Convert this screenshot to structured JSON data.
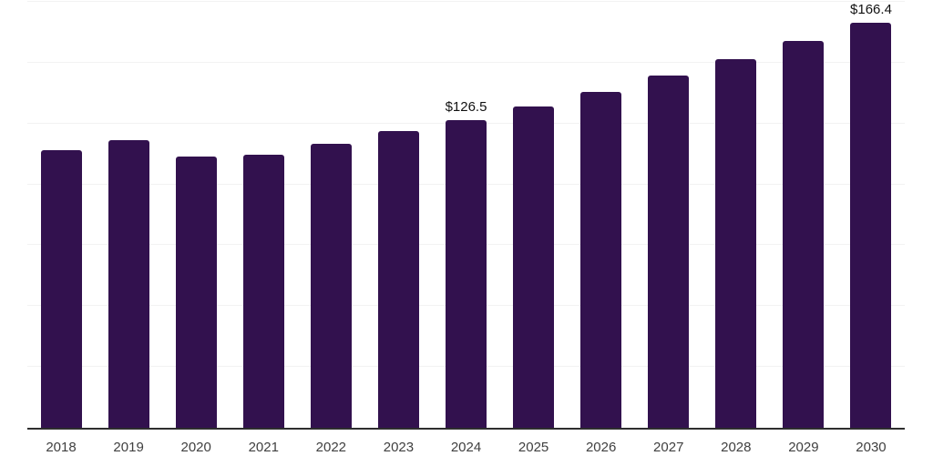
{
  "chart_data": {
    "type": "bar",
    "title": "",
    "xlabel": "",
    "ylabel": "",
    "categories": [
      "2018",
      "2019",
      "2020",
      "2021",
      "2022",
      "2023",
      "2024",
      "2025",
      "2026",
      "2027",
      "2028",
      "2029",
      "2030"
    ],
    "values": [
      114.0,
      118.0,
      111.3,
      112.2,
      116.6,
      121.8,
      126.5,
      132.1,
      138.1,
      144.8,
      151.4,
      158.9,
      166.4
    ],
    "data_labels": [
      "",
      "",
      "",
      "",
      "",
      "",
      "$126.5",
      "",
      "",
      "",
      "",
      "",
      "$166.4"
    ],
    "ylim": [
      0,
      175
    ],
    "gridline_values": [
      25,
      50,
      75,
      100,
      125,
      150,
      175
    ],
    "grid": "horizontal",
    "legend": "none",
    "y_axis_tick_labels_visible": false,
    "colors": {
      "bar": "#32114e",
      "axis_line": "#2e2e2e",
      "gridline": "#f2f2f2",
      "data_label": "#111111",
      "tick_label": "#404040",
      "background": "#ffffff"
    }
  }
}
